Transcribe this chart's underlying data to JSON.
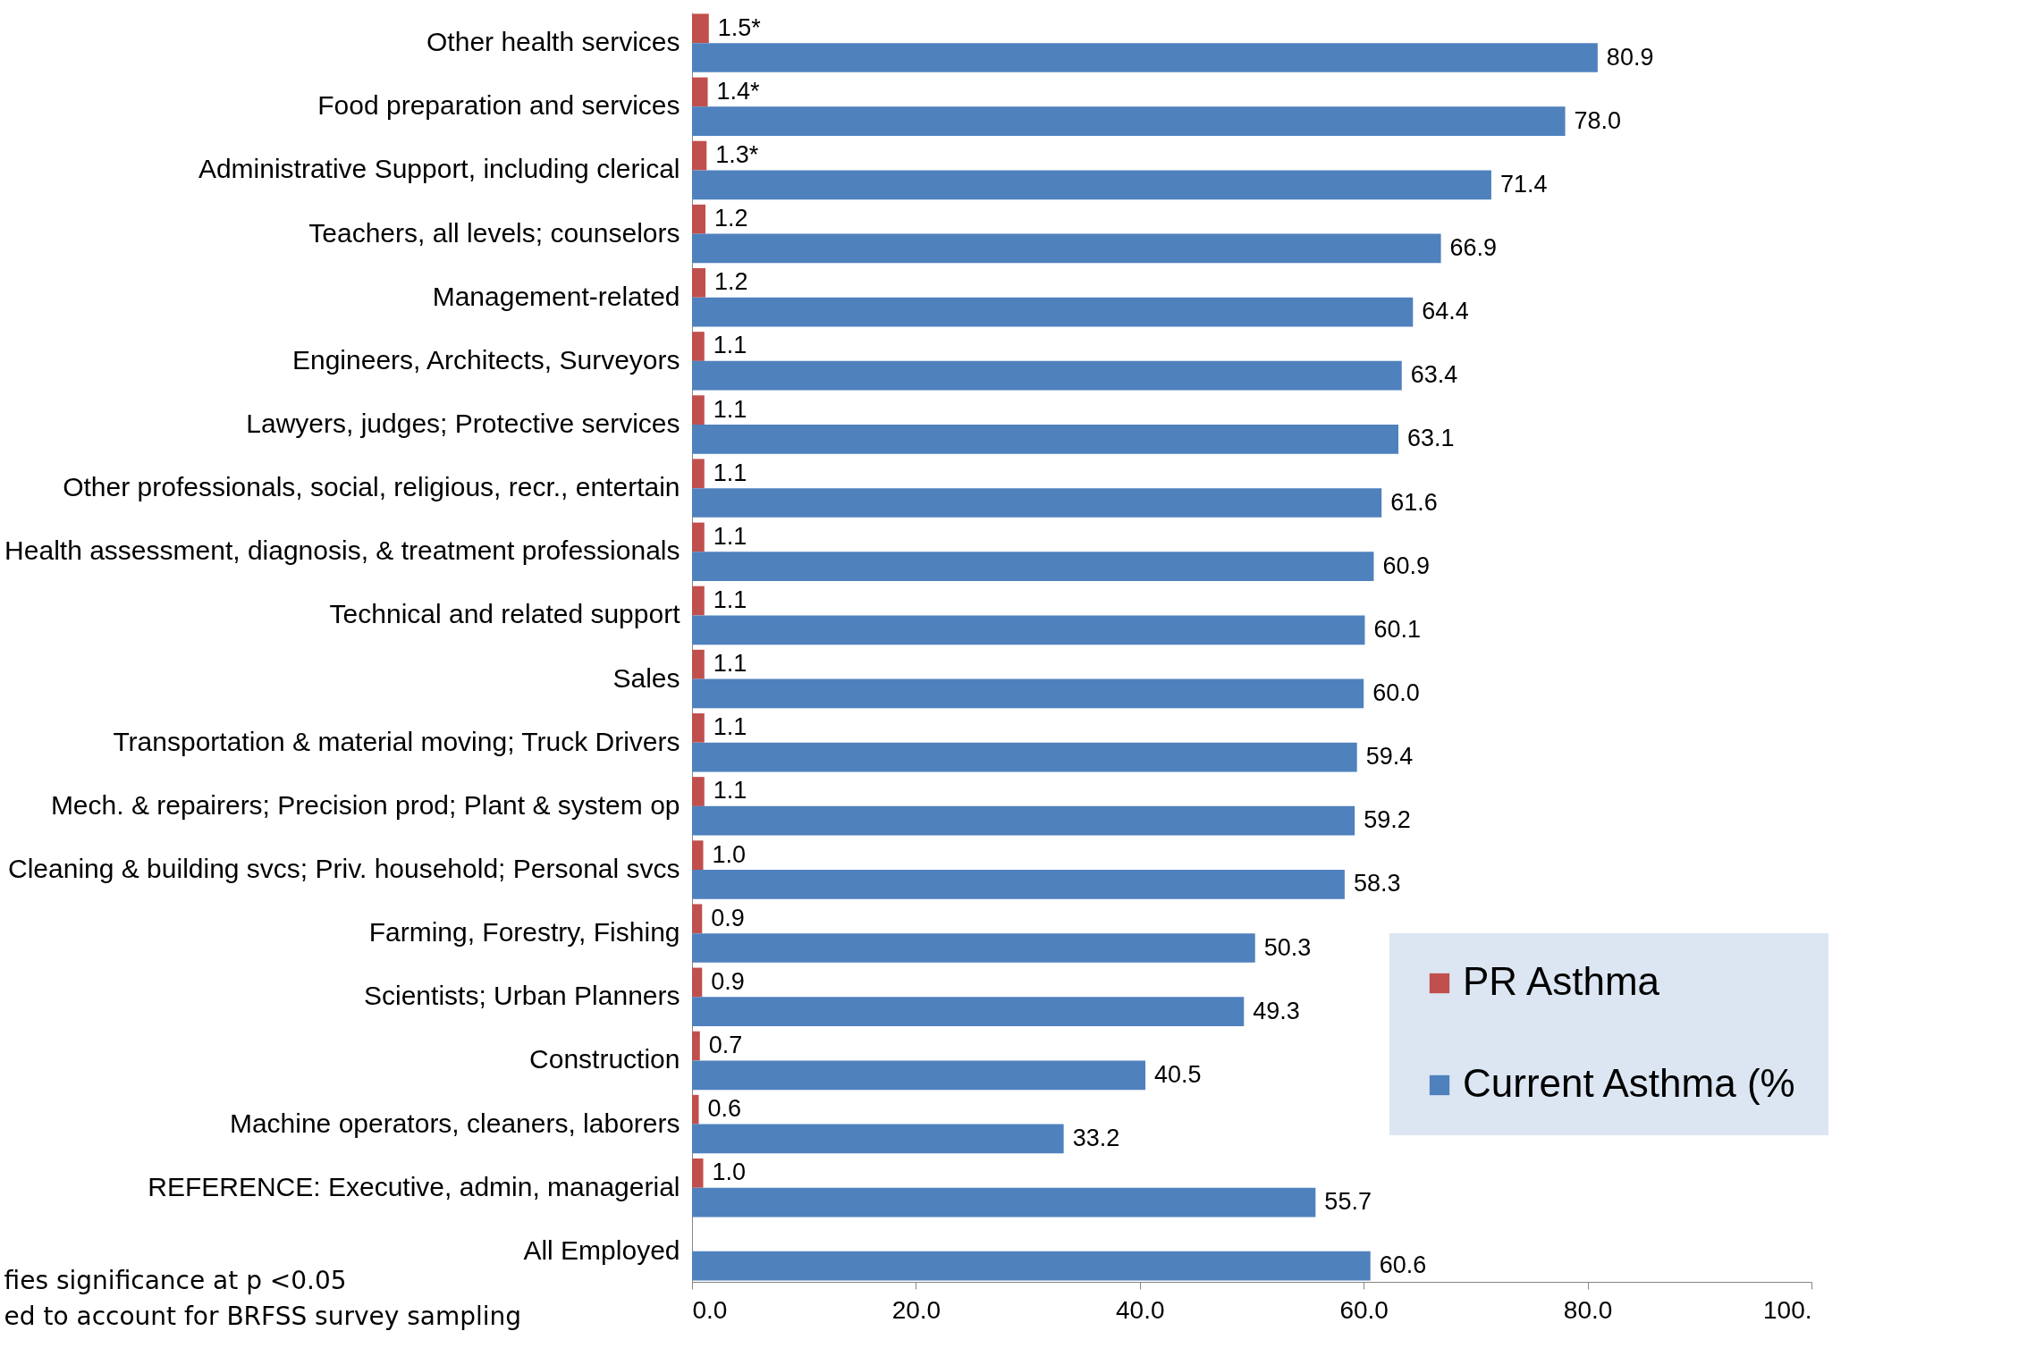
{
  "chart_data": {
    "type": "bar",
    "orientation": "horizontal",
    "categories": [
      "Other health services",
      "Food preparation and services",
      "Administrative Support, including clerical",
      "Teachers, all levels; counselors",
      "Management-related",
      "Engineers, Architects, Surveyors",
      "Lawyers, judges; Protective services",
      "Other professionals, social, religious, recr., entertain",
      "Health assessment, diagnosis, & treatment professionals",
      "Technical and related support",
      "Sales",
      "Transportation & material moving; Truck Drivers",
      "Mech. & repairers; Precision prod; Plant & system op",
      "Cleaning & building svcs; Priv. household; Personal svcs",
      "Farming, Forestry, Fishing",
      "Scientists; Urban Planners",
      "Construction",
      "Machine operators, cleaners, laborers",
      "REFERENCE: Executive, admin, managerial",
      "All Employed"
    ],
    "series": [
      {
        "name": "PR Asthma",
        "color": "#c0504d",
        "values": [
          1.5,
          1.4,
          1.3,
          1.2,
          1.2,
          1.1,
          1.1,
          1.1,
          1.1,
          1.1,
          1.1,
          1.1,
          1.1,
          1.0,
          0.9,
          0.9,
          0.7,
          0.6,
          1.0,
          null
        ],
        "value_labels": [
          "1.5*",
          "1.4*",
          "1.3*",
          "1.2",
          "1.2",
          "1.1",
          "1.1",
          "1.1",
          "1.1",
          "1.1",
          "1.1",
          "1.1",
          "1.1",
          "1.0",
          "0.9",
          "0.9",
          "0.7",
          "0.6",
          "1.0",
          null
        ]
      },
      {
        "name": "Current Asthma (%",
        "color": "#4f81bd",
        "values": [
          80.9,
          78.0,
          71.4,
          66.9,
          64.4,
          63.4,
          63.1,
          61.6,
          60.9,
          60.1,
          60.0,
          59.4,
          59.2,
          58.3,
          50.3,
          49.3,
          40.5,
          33.2,
          55.7,
          60.6
        ],
        "value_labels": [
          "80.9",
          "78.0",
          "71.4",
          "66.9",
          "64.4",
          "63.4",
          "63.1",
          "61.6",
          "60.9",
          "60.1",
          "60.0",
          "59.4",
          "59.2",
          "58.3",
          "50.3",
          "49.3",
          "40.5",
          "33.2",
          "55.7",
          "60.6"
        ]
      }
    ],
    "xlim": [
      0,
      100
    ],
    "xticks": [
      {
        "value": 0,
        "label": "0.0"
      },
      {
        "value": 20,
        "label": "20.0"
      },
      {
        "value": 40,
        "label": "40.0"
      },
      {
        "value": 60,
        "label": "60.0"
      },
      {
        "value": 80,
        "label": "80.0"
      },
      {
        "value": 100,
        "label": "100."
      }
    ],
    "grid": false,
    "legend": "bottom right",
    "annotations": [
      "fies significance at p <0.05",
      "ed to account for BRFSS survey sampling"
    ]
  }
}
